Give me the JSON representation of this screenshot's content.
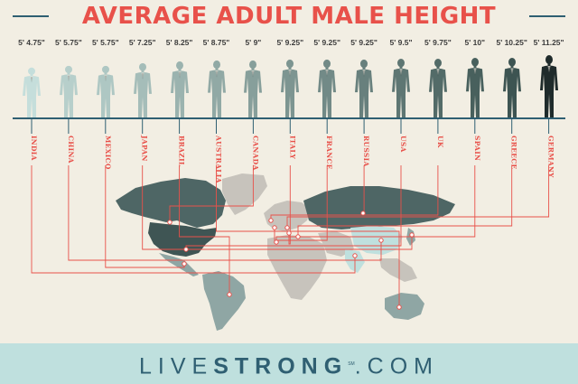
{
  "title": "AVERAGE ADULT MALE HEIGHT",
  "countries": [
    {
      "name": "INDIA",
      "height": "5' 4.75\"",
      "color": "#c5dedb"
    },
    {
      "name": "CHINA",
      "height": "5' 5.75\"",
      "color": "#b7cfcb"
    },
    {
      "name": "MEXICO",
      "height": "5' 5.75\"",
      "color": "#aec7c3"
    },
    {
      "name": "JAPAN",
      "height": "5' 7.25\"",
      "color": "#a5bdb9"
    },
    {
      "name": "BRAZIL",
      "height": "5' 8.25\"",
      "color": "#9bb3af"
    },
    {
      "name": "AUSTRALIA",
      "height": "5' 8.75\"",
      "color": "#91a9a5"
    },
    {
      "name": "CANADA",
      "height": "5' 9\"",
      "color": "#879f9b"
    },
    {
      "name": "ITALY",
      "height": "5' 9.25\"",
      "color": "#7d9591"
    },
    {
      "name": "FRANCE",
      "height": "5' 9.25\"",
      "color": "#728a87"
    },
    {
      "name": "RUSSIA",
      "height": "5' 9.25\"",
      "color": "#68807d"
    },
    {
      "name": "USA",
      "height": "5' 9.5\"",
      "color": "#5e7673"
    },
    {
      "name": "UK",
      "height": "5' 9.75\"",
      "color": "#536b68"
    },
    {
      "name": "SPAIN",
      "height": "5' 10\"",
      "color": "#48605d"
    },
    {
      "name": "GREECE",
      "height": "5' 10.25\"",
      "color": "#3d5452"
    },
    {
      "name": "GERMANY",
      "height": "5' 11.25\"",
      "color": "#1f2b2b"
    }
  ],
  "colors": {
    "accent": "#e8514a",
    "navy": "#2f5f72",
    "map_dark": "#4e6665",
    "map_mid": "#8fa6a4",
    "map_light": "#c7c3bc",
    "map_pale": "#bfe0de",
    "footer_bg": "#bfe0de"
  },
  "footer": {
    "brand_light": "LIVE",
    "brand_bold": "STRONG",
    "brand_sm": "SM",
    "brand_suffix": ".COM"
  }
}
